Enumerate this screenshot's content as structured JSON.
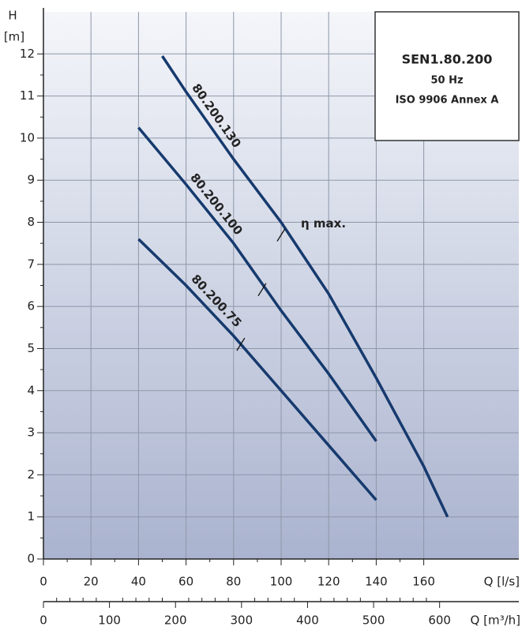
{
  "chart_data": {
    "type": "line",
    "ylabel": "H",
    "yunit": "[m]",
    "xlabel": "Q [l/s]",
    "x2label": "Q [m³/h]",
    "xlim": [
      0,
      200
    ],
    "xticks": [
      0,
      20,
      40,
      60,
      80,
      100,
      120,
      140,
      160
    ],
    "ylim": [
      0,
      13
    ],
    "yticks": [
      0,
      1,
      2,
      3,
      4,
      5,
      6,
      7,
      8,
      9,
      10,
      11,
      12
    ],
    "x2lim": [
      0,
      720
    ],
    "x2ticks": [
      0,
      100,
      200,
      300,
      400,
      500,
      600
    ],
    "grid": true,
    "series": [
      {
        "name": "80.200.130",
        "color": "#163a6e",
        "x": [
          50,
          60,
          80,
          100,
          120,
          140,
          160,
          170
        ],
        "values": [
          11.95,
          11.1,
          9.5,
          8.0,
          6.3,
          4.3,
          2.2,
          1.0
        ]
      },
      {
        "name": "80.200.100",
        "color": "#163a6e",
        "x": [
          40,
          60,
          80,
          100,
          120,
          140
        ],
        "values": [
          10.25,
          8.9,
          7.5,
          5.9,
          4.4,
          2.8
        ]
      },
      {
        "name": "80.200.75",
        "color": "#163a6e",
        "x": [
          40,
          60,
          80,
          100,
          120,
          140
        ],
        "values": [
          7.6,
          6.5,
          5.3,
          4.0,
          2.7,
          1.4
        ]
      }
    ],
    "eta_max": {
      "label": "η max.",
      "x": [
        100,
        92,
        83
      ],
      "values": [
        7.7,
        6.4,
        5.1
      ]
    },
    "info_box": [
      "SEN1.80.200",
      "50 Hz",
      "ISO 9906 Annex A"
    ]
  }
}
